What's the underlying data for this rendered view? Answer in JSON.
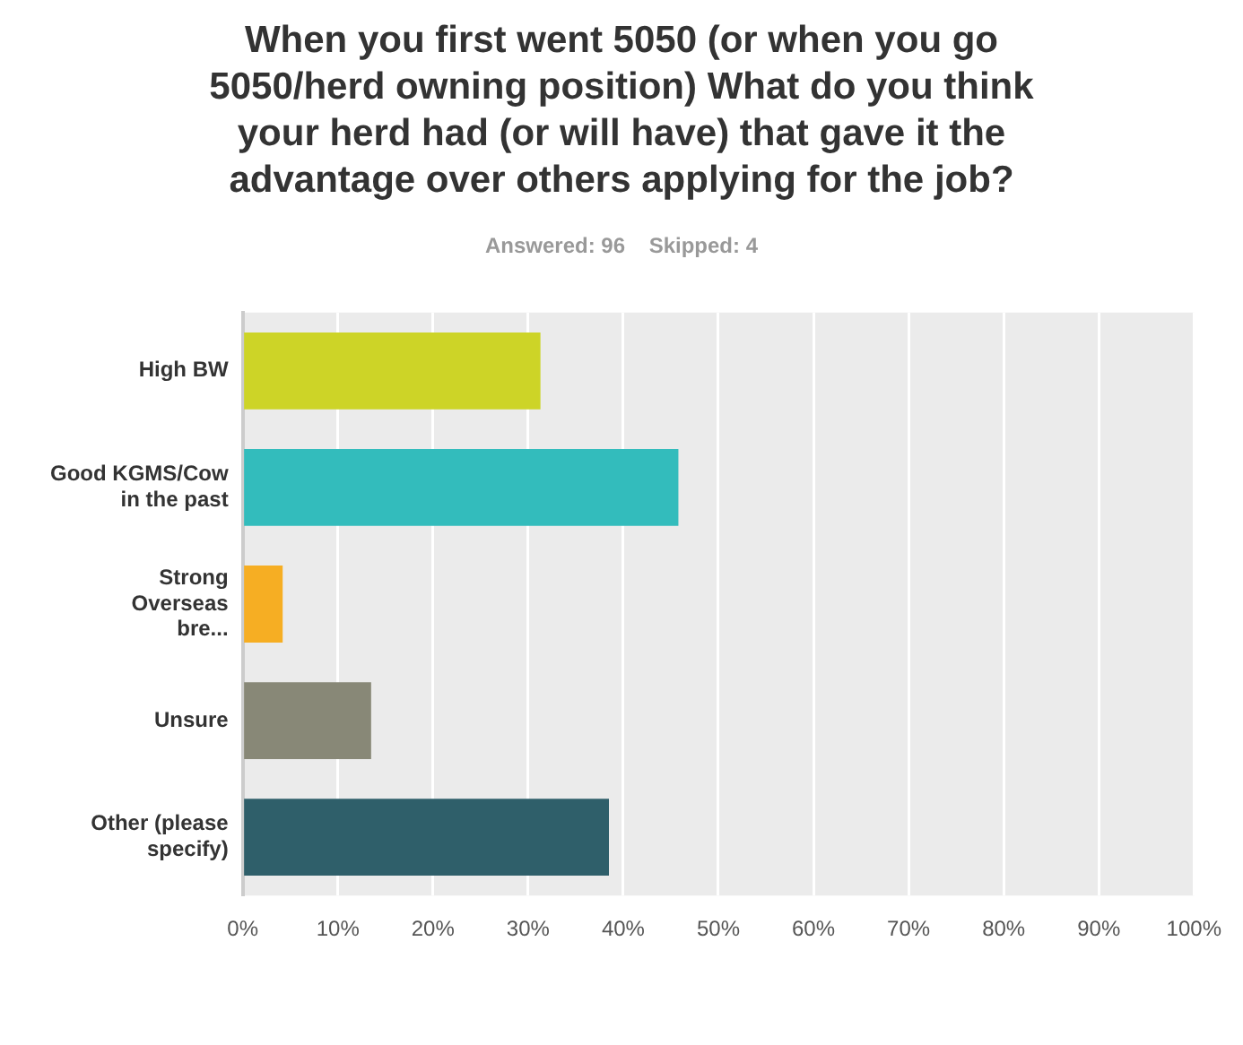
{
  "chart_data": {
    "type": "bar",
    "orientation": "horizontal",
    "title": "When you first went 5050 (or when you go 5050/herd owning position) What do you think your herd had (or will have) that gave it the advantage over others applying for the job?",
    "subtitle": "Answered: 96    Skipped: 4",
    "categories": [
      "High BW",
      "Good KGMS/Cow in the past",
      "Strong Overseas bre...",
      "Unsure",
      "Other (please specify)"
    ],
    "values": [
      31.3,
      45.8,
      4.2,
      13.5,
      38.5
    ],
    "colors": [
      "#cdd427",
      "#33bcbc",
      "#f6ae23",
      "#888877",
      "#2f5f6a"
    ],
    "xlim": [
      0,
      100
    ],
    "xticks": [
      {
        "value": 0,
        "label": "0%"
      },
      {
        "value": 10,
        "label": "10%"
      },
      {
        "value": 20,
        "label": "20%"
      },
      {
        "value": 30,
        "label": "30%"
      },
      {
        "value": 40,
        "label": "40%"
      },
      {
        "value": 50,
        "label": "50%"
      },
      {
        "value": 60,
        "label": "60%"
      },
      {
        "value": 70,
        "label": "70%"
      },
      {
        "value": 80,
        "label": "80%"
      },
      {
        "value": 90,
        "label": "90%"
      },
      {
        "value": 100,
        "label": "100%"
      }
    ],
    "grid": "x",
    "legend": false
  }
}
